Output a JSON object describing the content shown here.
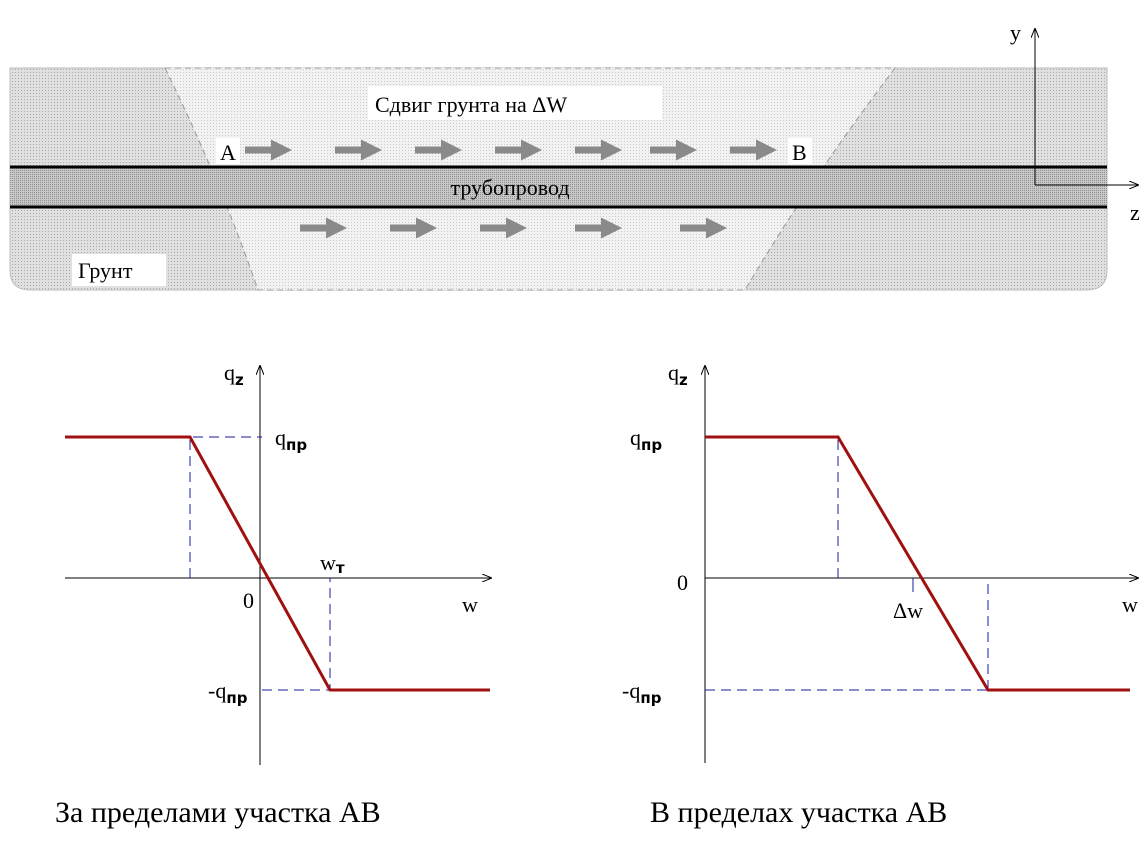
{
  "top_diagram": {
    "shift_label": "Сдвиг грунта на ΔW",
    "point_a": "A",
    "point_b": "B",
    "pipe_label": "трубопровод",
    "soil_label": "Грунт",
    "y_axis": "y",
    "z_axis": "z"
  },
  "left_chart": {
    "y_axis": {
      "symbol": "q",
      "subscript": "z"
    },
    "upper_level": {
      "symbol": "q",
      "subscript": "пр"
    },
    "lower_level": {
      "symbol": "-q",
      "subscript": "пр"
    },
    "origin": "0",
    "x_axis": "w",
    "threshold": {
      "symbol": "w",
      "subscript": "т"
    },
    "caption": "За пределами участка AB"
  },
  "right_chart": {
    "y_axis": {
      "symbol": "q",
      "subscript": "z"
    },
    "upper_level": {
      "symbol": "q",
      "subscript": "пр"
    },
    "lower_level": {
      "symbol": "-q",
      "subscript": "пр"
    },
    "origin": "0",
    "x_axis": "w",
    "shift": "Δw",
    "caption": "В пределах участка AB"
  }
}
